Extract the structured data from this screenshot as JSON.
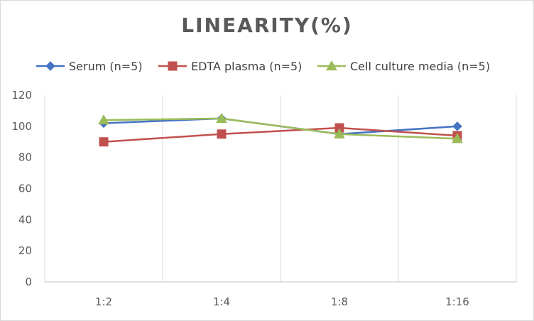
{
  "chart_data": {
    "type": "line",
    "title": "LINEARITY(%)",
    "categories": [
      "1:2",
      "1:4",
      "1:8",
      "1:16"
    ],
    "ylim": [
      0,
      120
    ],
    "yticks": [
      0,
      20,
      40,
      60,
      80,
      100,
      120
    ],
    "grid": "vertical",
    "legend_position": "top",
    "series": [
      {
        "name": "Serum (n=5)",
        "values": [
          102,
          105,
          95,
          100
        ],
        "color": "#4472c4",
        "marker": "diamond"
      },
      {
        "name": "EDTA plasma (n=5)",
        "values": [
          90,
          95,
          99,
          94
        ],
        "color": "#c0504d",
        "marker": "square"
      },
      {
        "name": "Cell culture media (n=5)",
        "values": [
          104,
          105,
          95,
          92
        ],
        "color": "#9bbb59",
        "marker": "triangle"
      }
    ]
  }
}
